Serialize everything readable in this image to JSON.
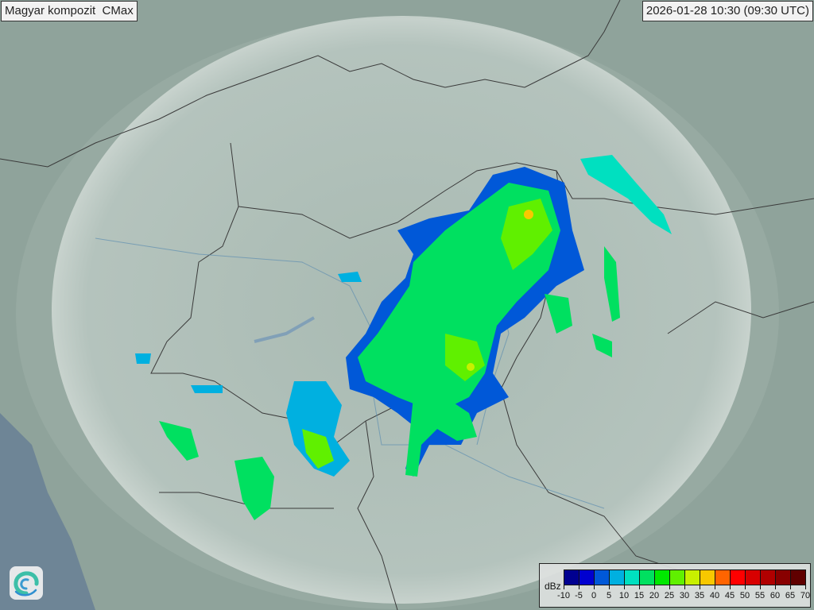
{
  "header": {
    "title": "Magyar kompozit  CMax",
    "timestamp": "2026-01-28 10:30 (09:30 UTC)"
  },
  "logo": {
    "icon": "omsz-swirl-logo"
  },
  "legend": {
    "unit": "dBz",
    "labels": [
      "-10",
      "-5",
      "0",
      "5",
      "10",
      "15",
      "20",
      "25",
      "30",
      "35",
      "40",
      "45",
      "50",
      "55",
      "60",
      "65",
      "70"
    ],
    "colors": [
      "#000090",
      "#0000d0",
      "#0058d8",
      "#00b0e0",
      "#00e0c0",
      "#00e060",
      "#00e800",
      "#60f000",
      "#c8f000",
      "#f8c800",
      "#ff6400",
      "#ff0000",
      "#d80000",
      "#b00000",
      "#880000",
      "#600000"
    ]
  },
  "map": {
    "background": "#8fa39b",
    "coverage_color": "#c8d4cf"
  }
}
